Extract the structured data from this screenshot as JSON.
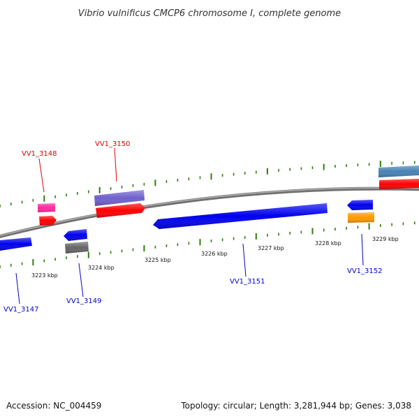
{
  "title": "Vibrio vulnificus CMCP6 chromosome I, complete genome",
  "footer": {
    "accession": "Accession: NC_004459",
    "topology": "Topology: circular; Length: 3,281,944 bp; Genes: 3,038"
  },
  "colors": {
    "backbone": "#808080",
    "ticks": "#2e7d0e",
    "label_top": "#e00000",
    "label_bottom": "#0000cc",
    "gene_blue": "#0000ee",
    "gene_red": "#ff0000",
    "gene_pink": "#ff2aa0",
    "gene_purple": "#7060cc",
    "gene_gray": "#666666",
    "gene_orange": "#ff9900",
    "gene_steel": "#4682b4"
  },
  "kbp_labels": [
    "3223 kbp",
    "3224 kbp",
    "3225 kbp",
    "3226 kbp",
    "3227 kbp",
    "3228 kbp",
    "3229 kbp"
  ],
  "gene_labels": {
    "vv1_3147": "VV1_3147",
    "vv1_3148": "VV1_3148",
    "vv1_3149": "VV1_3149",
    "vv1_3150": "VV1_3150",
    "vv1_3151": "VV1_3151",
    "vv1_3152": "VV1_3152"
  }
}
